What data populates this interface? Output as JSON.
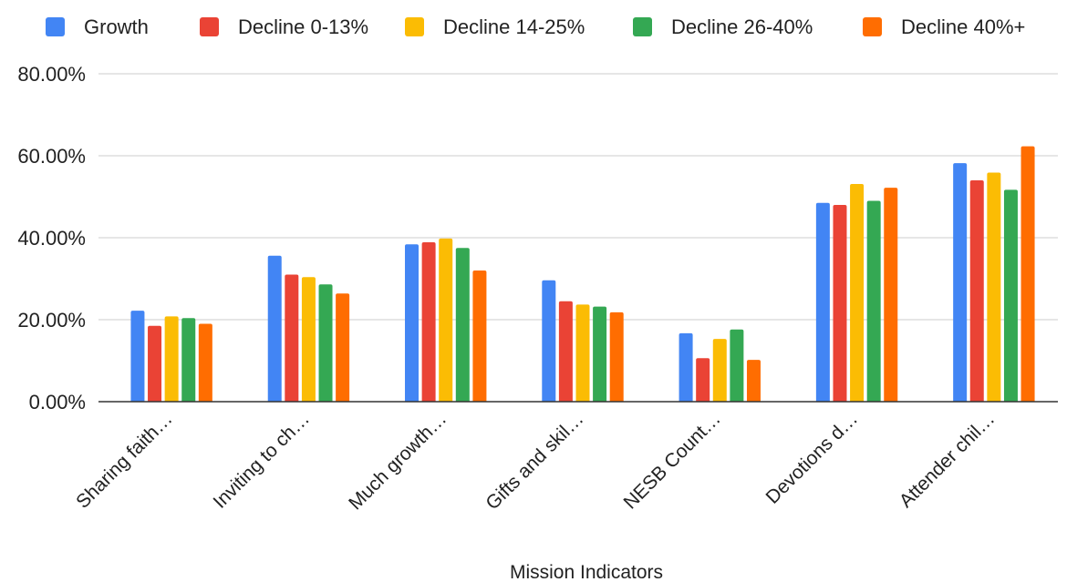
{
  "chart_data": {
    "type": "bar",
    "title": "",
    "xlabel": "Mission Indicators",
    "ylabel": "",
    "ylim": [
      0,
      80
    ],
    "yticks": [
      "0.00%",
      "20.00%",
      "40.00%",
      "60.00%",
      "80.00%"
    ],
    "ytick_values": [
      0,
      20,
      40,
      60,
      80
    ],
    "grid": true,
    "legend_position": "top",
    "categories": [
      "Sharing faith…",
      "Inviting to ch…",
      "Much growth…",
      "Gifts and skil…",
      "NESB Count…",
      "Devotions d…",
      "Attender chil…"
    ],
    "series": [
      {
        "name": "Growth",
        "color": "#4285f4",
        "values": [
          22.2,
          35.6,
          38.4,
          29.6,
          16.7,
          48.5,
          58.2
        ]
      },
      {
        "name": "Decline 0-13%",
        "color": "#ea4335",
        "values": [
          18.5,
          31.0,
          38.9,
          24.5,
          10.6,
          48.0,
          54.0
        ]
      },
      {
        "name": "Decline 14-25%",
        "color": "#fbbc04",
        "values": [
          20.8,
          30.4,
          39.8,
          23.7,
          15.3,
          53.1,
          55.9
        ]
      },
      {
        "name": "Decline 26-40%",
        "color": "#34a853",
        "values": [
          20.4,
          28.6,
          37.5,
          23.2,
          17.6,
          49.0,
          51.7
        ]
      },
      {
        "name": "Decline 40%+",
        "color": "#ff6d01",
        "values": [
          19.0,
          26.4,
          32.0,
          21.8,
          10.2,
          52.2,
          62.3
        ]
      }
    ]
  }
}
